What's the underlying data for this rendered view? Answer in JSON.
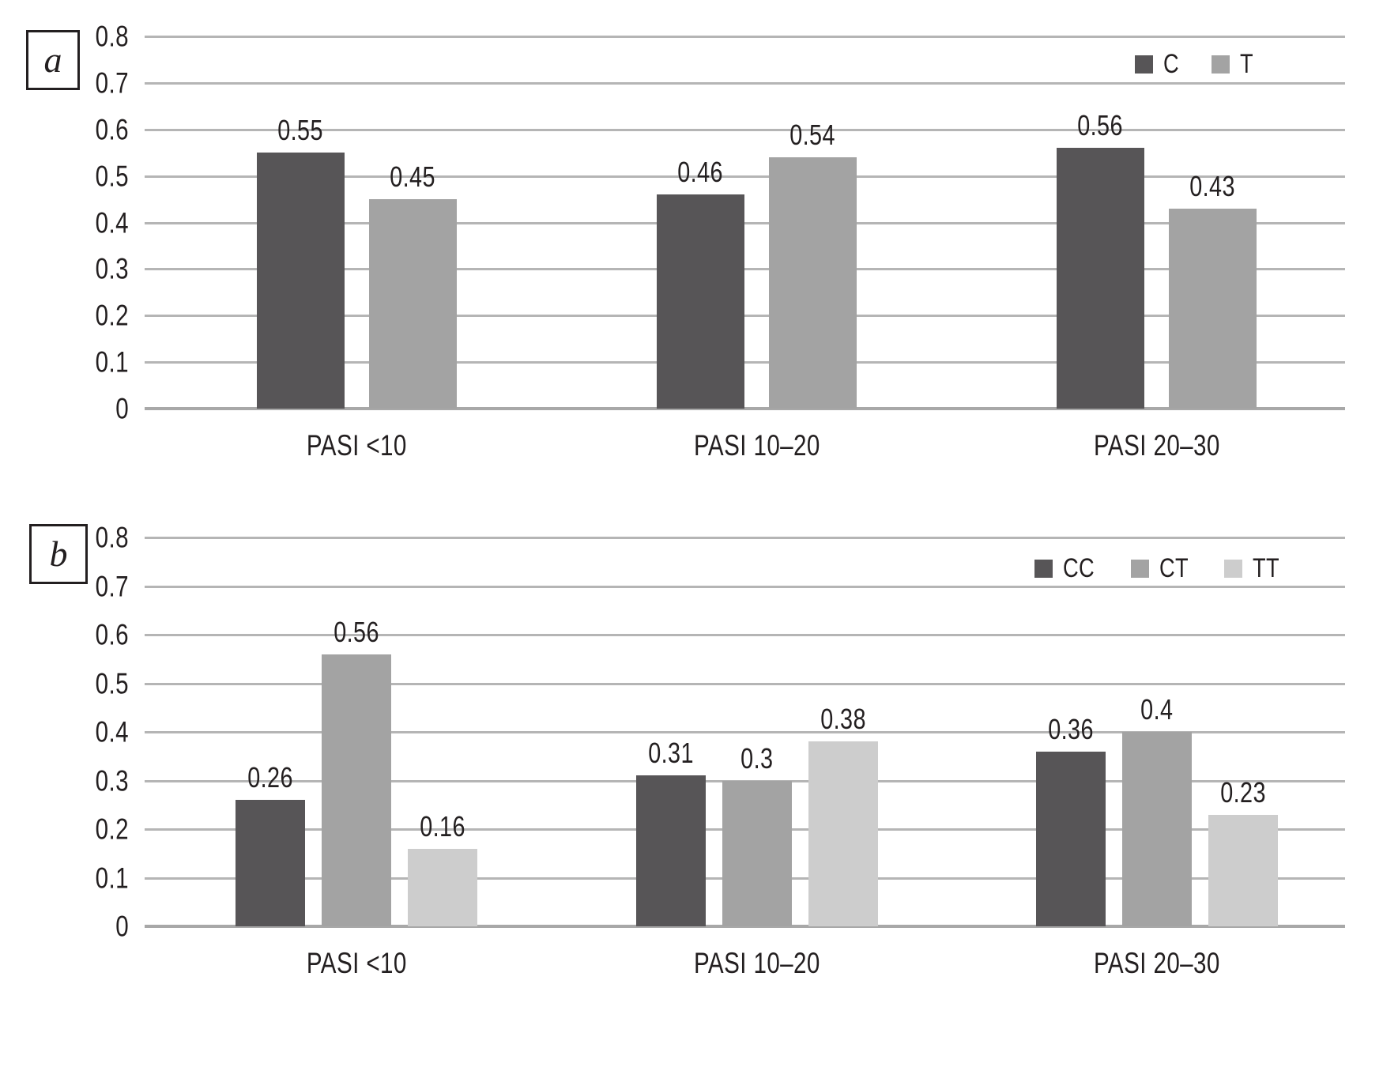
{
  "figure": {
    "background": "#ffffff",
    "text_color": "#231f20",
    "gridline_color": "#b5b5b5",
    "axis_line_color": "#a8a8a8"
  },
  "panels": [
    {
      "panel_label": "a"
    },
    {
      "panel_label": "b"
    }
  ],
  "chart_data": [
    {
      "type": "bar",
      "panel": "a",
      "title": "",
      "xlabel": "",
      "ylabel": "",
      "categories": [
        "PASI <10",
        "PASI 10–20",
        "PASI 20–30"
      ],
      "series": [
        {
          "name": "C",
          "color": "#575557",
          "values": [
            0.55,
            0.46,
            0.56
          ]
        },
        {
          "name": "T",
          "color": "#a3a3a3",
          "values": [
            0.45,
            0.54,
            0.43
          ]
        }
      ],
      "value_labels": [
        [
          "0.55",
          "0.46",
          "0.56"
        ],
        [
          "0.45",
          "0.54",
          "0.43"
        ]
      ],
      "ylim": [
        0,
        0.8
      ],
      "ytick_labels": [
        "0.8",
        "0.7",
        "0.6",
        "0.5",
        "0.4",
        "0.3",
        "0.2",
        "0.1",
        "0"
      ],
      "grid": true,
      "legend_position": "top-right"
    },
    {
      "type": "bar",
      "panel": "b",
      "title": "",
      "xlabel": "",
      "ylabel": "",
      "categories": [
        "PASI <10",
        "PASI 10–20",
        "PASI 20–30"
      ],
      "series": [
        {
          "name": "CC",
          "color": "#575557",
          "values": [
            0.26,
            0.31,
            0.36
          ]
        },
        {
          "name": "CT",
          "color": "#a3a3a3",
          "values": [
            0.56,
            0.3,
            0.4
          ]
        },
        {
          "name": "TT",
          "color": "#cdcdcd",
          "values": [
            0.16,
            0.38,
            0.23
          ]
        }
      ],
      "value_labels": [
        [
          "0.26",
          "0.31",
          "0.36"
        ],
        [
          "0.56",
          "0.3",
          "0.4"
        ],
        [
          "0.16",
          "0.38",
          "0.23"
        ]
      ],
      "ylim": [
        0,
        0.8
      ],
      "ytick_labels": [
        "0.8",
        "0.7",
        "0.6",
        "0.5",
        "0.4",
        "0.3",
        "0.2",
        "0.1",
        "0"
      ],
      "grid": true,
      "legend_position": "top-right"
    }
  ]
}
